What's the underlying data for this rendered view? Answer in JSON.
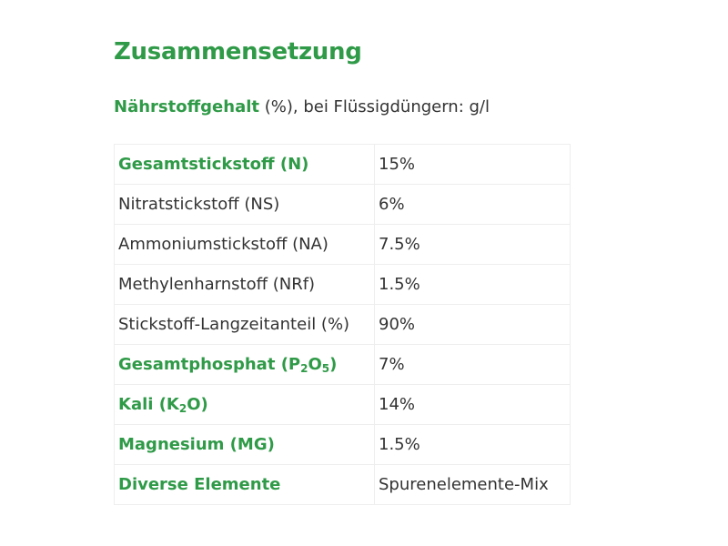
{
  "page": {
    "title": "Zusammensetzung",
    "subtitle_strong": "Nährstoffgehalt",
    "subtitle_rest": " (%), bei Flüssigdüngern: g/l"
  },
  "table": {
    "rows": [
      {
        "label": "Gesamtstickstoff (N)",
        "value": "15%",
        "strong": true
      },
      {
        "label": "Nitratstickstoff (NS)",
        "value": "6%",
        "strong": false
      },
      {
        "label": "Ammoniumstickstoff (NA)",
        "value": "7.5%",
        "strong": false
      },
      {
        "label": "Methylenharnstoff (NRf)",
        "value": "1.5%",
        "strong": false
      },
      {
        "label": "Stickstoff-Langzeitanteil (%)",
        "value": "90%",
        "strong": false
      },
      {
        "label_parts": [
          "Gesamtphosphat (P",
          "2",
          "O",
          "5",
          ")"
        ],
        "value": "7%",
        "strong": true
      },
      {
        "label_parts": [
          "Kali (K",
          "2",
          "O)"
        ],
        "value": "14%",
        "strong": true
      },
      {
        "label": "Magnesium (MG)",
        "value": "1.5%",
        "strong": true
      },
      {
        "label": "Diverse Elemente",
        "value": "Spurenelemente-Mix",
        "strong": true
      }
    ]
  },
  "colors": {
    "accent_green": "#2f9a47",
    "text": "#333333",
    "border": "#eeeeee"
  }
}
